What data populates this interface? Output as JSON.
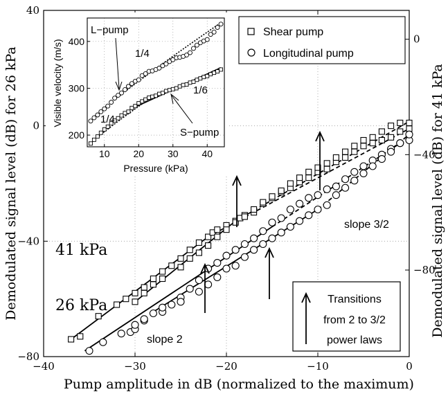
{
  "chart_data": {
    "type": "scatter",
    "xlabel": "Pump amplitude in dB (normalized to the maximum)",
    "ylabel_left": "Demodulated signal level (dB) for 26 kPa",
    "ylabel_right": "Demodulated signal level (dB) for 41 kPa",
    "xlim": [
      -40,
      0
    ],
    "ylim_left": [
      -80,
      40
    ],
    "ylim_right": [
      -110,
      10
    ],
    "x_ticks": [
      -40,
      -30,
      -20,
      -10,
      0
    ],
    "y_ticks_left": [
      -80,
      -40,
      0,
      40
    ],
    "y_ticks_right": [
      -80,
      -40,
      0
    ],
    "grid": true,
    "legend": {
      "placement": "top-right",
      "entries": [
        {
          "marker": "square",
          "label": "Shear pump"
        },
        {
          "marker": "circle",
          "label": "Longitudinal pump"
        }
      ]
    },
    "annotations": {
      "label_41": "41 kPa",
      "label_26": "26 kPa",
      "slope2": "slope 2",
      "slope32": "slope 3/2",
      "transition_box": [
        "Transitions",
        "from 2 to 3/2",
        "power laws"
      ]
    },
    "series": [
      {
        "name": "Shear pump",
        "pressure": "26 kPa",
        "marker": "square",
        "x": [
          -37,
          -36,
          -34,
          -32,
          -31,
          -30,
          -29,
          -28,
          -27,
          -26,
          -25,
          -24,
          -23,
          -22,
          -21.5,
          -21,
          -20,
          -19,
          -18,
          -17,
          -16,
          -15,
          -14,
          -13,
          -12,
          -11,
          -10,
          -9,
          -8,
          -7,
          -6,
          -5,
          -4,
          -3,
          -2,
          -1,
          0
        ],
        "y": [
          -74,
          -73,
          -66,
          -62,
          -60,
          -58,
          -56,
          -53,
          -50.5,
          -48.5,
          -46,
          -43,
          -40.5,
          -38.5,
          -37,
          -36,
          -34.5,
          -33,
          -31,
          -30,
          -27,
          -25,
          -23,
          -21.5,
          -19.5,
          -18,
          -16,
          -15,
          -12.5,
          -11,
          -9,
          -7,
          -6,
          -5,
          -4,
          -2,
          -1
        ]
      },
      {
        "name": "Longitudinal pump",
        "pressure": "26 kPa",
        "marker": "circle",
        "x": [
          -35,
          -33.5,
          -31.5,
          -30.5,
          -30,
          -29,
          -27,
          -26,
          -25,
          -24,
          -23,
          -22,
          -21,
          -20,
          -19,
          -18,
          -17,
          -16,
          -15,
          -14,
          -13,
          -12,
          -11,
          -10,
          -9,
          -8,
          -7,
          -6,
          -5,
          -4,
          -3,
          -2,
          -1,
          0
        ],
        "y": [
          -78,
          -75,
          -72,
          -71.5,
          -70.5,
          -67.5,
          -64.5,
          -62,
          -59.5,
          -56.5,
          -53.5,
          -49.5,
          -47.5,
          -45,
          -43,
          -41,
          -39,
          -36.5,
          -33.5,
          -32,
          -29,
          -27,
          -25,
          -24,
          -22,
          -21,
          -18.5,
          -16,
          -14,
          -12,
          -10,
          -8,
          -6,
          -5
        ]
      },
      {
        "name": "Shear pump",
        "pressure": "41 kPa",
        "marker": "square",
        "x": [
          -30,
          -29,
          -28,
          -27,
          -25,
          -24,
          -23,
          -22,
          -21,
          -20,
          -19,
          -18.5,
          -18,
          -17,
          -16,
          -15,
          -14,
          -13,
          -12,
          -11,
          -10,
          -9,
          -8,
          -7,
          -6,
          -5,
          -4,
          -3,
          -2,
          -1,
          0
        ],
        "y": [
          -61,
          -58,
          -55,
          -53,
          -49,
          -46,
          -44,
          -41.5,
          -38.5,
          -36,
          -33.5,
          -32,
          -31.5,
          -29,
          -26.5,
          -24.5,
          -22.5,
          -20,
          -18,
          -16,
          -14.5,
          -13,
          -11,
          -9,
          -7,
          -5,
          -4,
          -2,
          0,
          1,
          1
        ]
      },
      {
        "name": "Longitudinal pump",
        "pressure": "41 kPa",
        "marker": "circle",
        "x": [
          -30,
          -29,
          -28,
          -27,
          -25,
          -23,
          -22,
          -21,
          -20,
          -19,
          -18,
          -17,
          -16,
          -15,
          -14,
          -13,
          -12,
          -11,
          -10,
          -9,
          -8,
          -7,
          -6,
          -5,
          -4,
          -3,
          -2,
          -1,
          0
        ],
        "y": [
          -69,
          -67,
          -65,
          -63,
          -61,
          -57.5,
          -55,
          -52.5,
          -49.5,
          -48.5,
          -45.5,
          -43,
          -41,
          -39,
          -37,
          -35,
          -33,
          -31,
          -29,
          -27.5,
          -24,
          -21.5,
          -19,
          -16.5,
          -14,
          -11.5,
          -9,
          -6,
          -3
        ]
      }
    ],
    "inset": {
      "type": "scatter",
      "xlabel": "Pressure (kPa)",
      "ylabel": "Visible velocity (m/s)",
      "xlim": [
        5,
        45
      ],
      "ylim": [
        175,
        450
      ],
      "x_ticks": [
        10,
        20,
        30,
        40
      ],
      "y_ticks": [
        200,
        300,
        400
      ],
      "grid": true,
      "labels": {
        "lpump": "L−pump",
        "spump": "S−pump",
        "q1": "1/4",
        "q2": "1/6",
        "q3": "1/4"
      },
      "series": [
        {
          "name": "L−pump",
          "marker": "circle",
          "x": [
            6,
            7,
            8,
            9,
            10,
            11,
            12,
            13,
            14,
            15,
            16,
            17,
            18,
            19,
            20,
            21,
            22,
            23,
            24,
            25,
            26,
            27,
            28,
            29,
            30,
            31,
            32,
            33,
            34,
            35,
            36,
            37,
            38,
            39,
            40,
            41,
            42,
            43,
            44
          ],
          "y": [
            230,
            237,
            243,
            250,
            256,
            262,
            270,
            279,
            285,
            290,
            297,
            304,
            310,
            315,
            318,
            327,
            331,
            336,
            337,
            340,
            343,
            348,
            352,
            357,
            361,
            365,
            366,
            368,
            371,
            376,
            385,
            392,
            397,
            401,
            404,
            415,
            420,
            430,
            437
          ]
        },
        {
          "name": "S−pump",
          "marker": "square",
          "x": [
            6,
            7,
            8,
            9,
            10,
            11,
            12,
            13,
            14,
            15,
            16,
            17,
            18,
            19,
            20,
            21,
            22,
            23,
            24,
            25,
            26,
            27,
            28,
            29,
            30,
            31,
            32,
            33,
            34,
            35,
            36,
            37,
            38,
            39,
            40,
            41,
            42,
            43,
            44
          ],
          "y": [
            182,
            190,
            197,
            205,
            212,
            218,
            225,
            231,
            236,
            242,
            247,
            250,
            258,
            262,
            268,
            272,
            276,
            280,
            282,
            284,
            288,
            290,
            294,
            296,
            298,
            300,
            304,
            307,
            308,
            312,
            314,
            318,
            321,
            324,
            326,
            330,
            333,
            336,
            340
          ]
        }
      ]
    }
  }
}
